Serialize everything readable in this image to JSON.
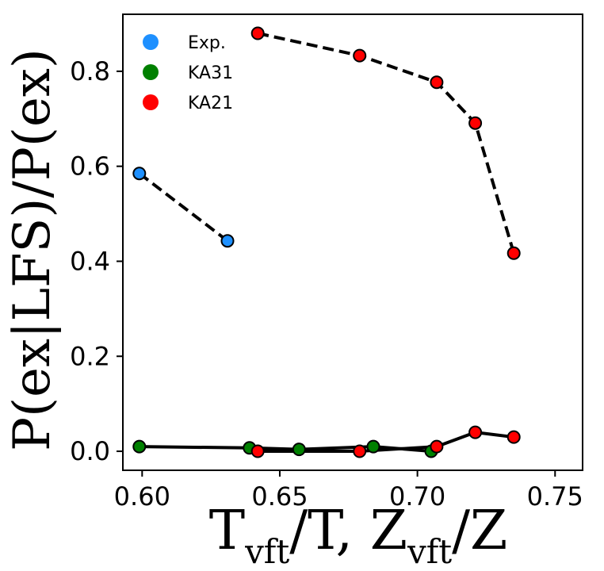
{
  "chart_data": {
    "type": "scatter",
    "xlim": [
      0.593,
      0.76
    ],
    "ylim": [
      -0.04,
      0.92
    ],
    "xticks": [
      0.6,
      0.65,
      0.7,
      0.75
    ],
    "xtick_labels": [
      "0.60",
      "0.65",
      "0.70",
      "0.75"
    ],
    "yticks": [
      0.0,
      0.2,
      0.4,
      0.6,
      0.8
    ],
    "ytick_labels": [
      "0.0",
      "0.2",
      "0.4",
      "0.6",
      "0.8"
    ],
    "xlabel": {
      "parts": [
        {
          "text": "T",
          "sub": false
        },
        {
          "text": "vft",
          "sub": true
        },
        {
          "text": "/T, Z",
          "sub": false
        },
        {
          "text": "vft",
          "sub": true
        },
        {
          "text": "/Z",
          "sub": false
        }
      ]
    },
    "ylabel": "P(ex|LFS)/P(ex)",
    "legend_position": "top-left",
    "series": [
      {
        "name": "Exp.",
        "color": "#1e90ff",
        "line": "dashed",
        "x": [
          0.599,
          0.631
        ],
        "y": [
          0.585,
          0.443
        ]
      },
      {
        "name": "KA31",
        "color": "#008000",
        "line": "solid",
        "x": [
          0.599,
          0.639,
          0.657,
          0.684,
          0.705
        ],
        "y": [
          0.01,
          0.007,
          0.004,
          0.01,
          0.0
        ]
      },
      {
        "name": "KA21",
        "color": "#ff0000",
        "line": "solid",
        "x": [
          0.642,
          0.679,
          0.707,
          0.721,
          0.735
        ],
        "y": [
          0.0,
          0.0,
          0.01,
          0.04,
          0.03
        ]
      },
      {
        "name": "KA21",
        "color": "#ff0000",
        "line": "dashed",
        "legend": false,
        "x": [
          0.642,
          0.679,
          0.707,
          0.721,
          0.735
        ],
        "y": [
          0.88,
          0.833,
          0.777,
          0.691,
          0.417
        ]
      }
    ]
  }
}
